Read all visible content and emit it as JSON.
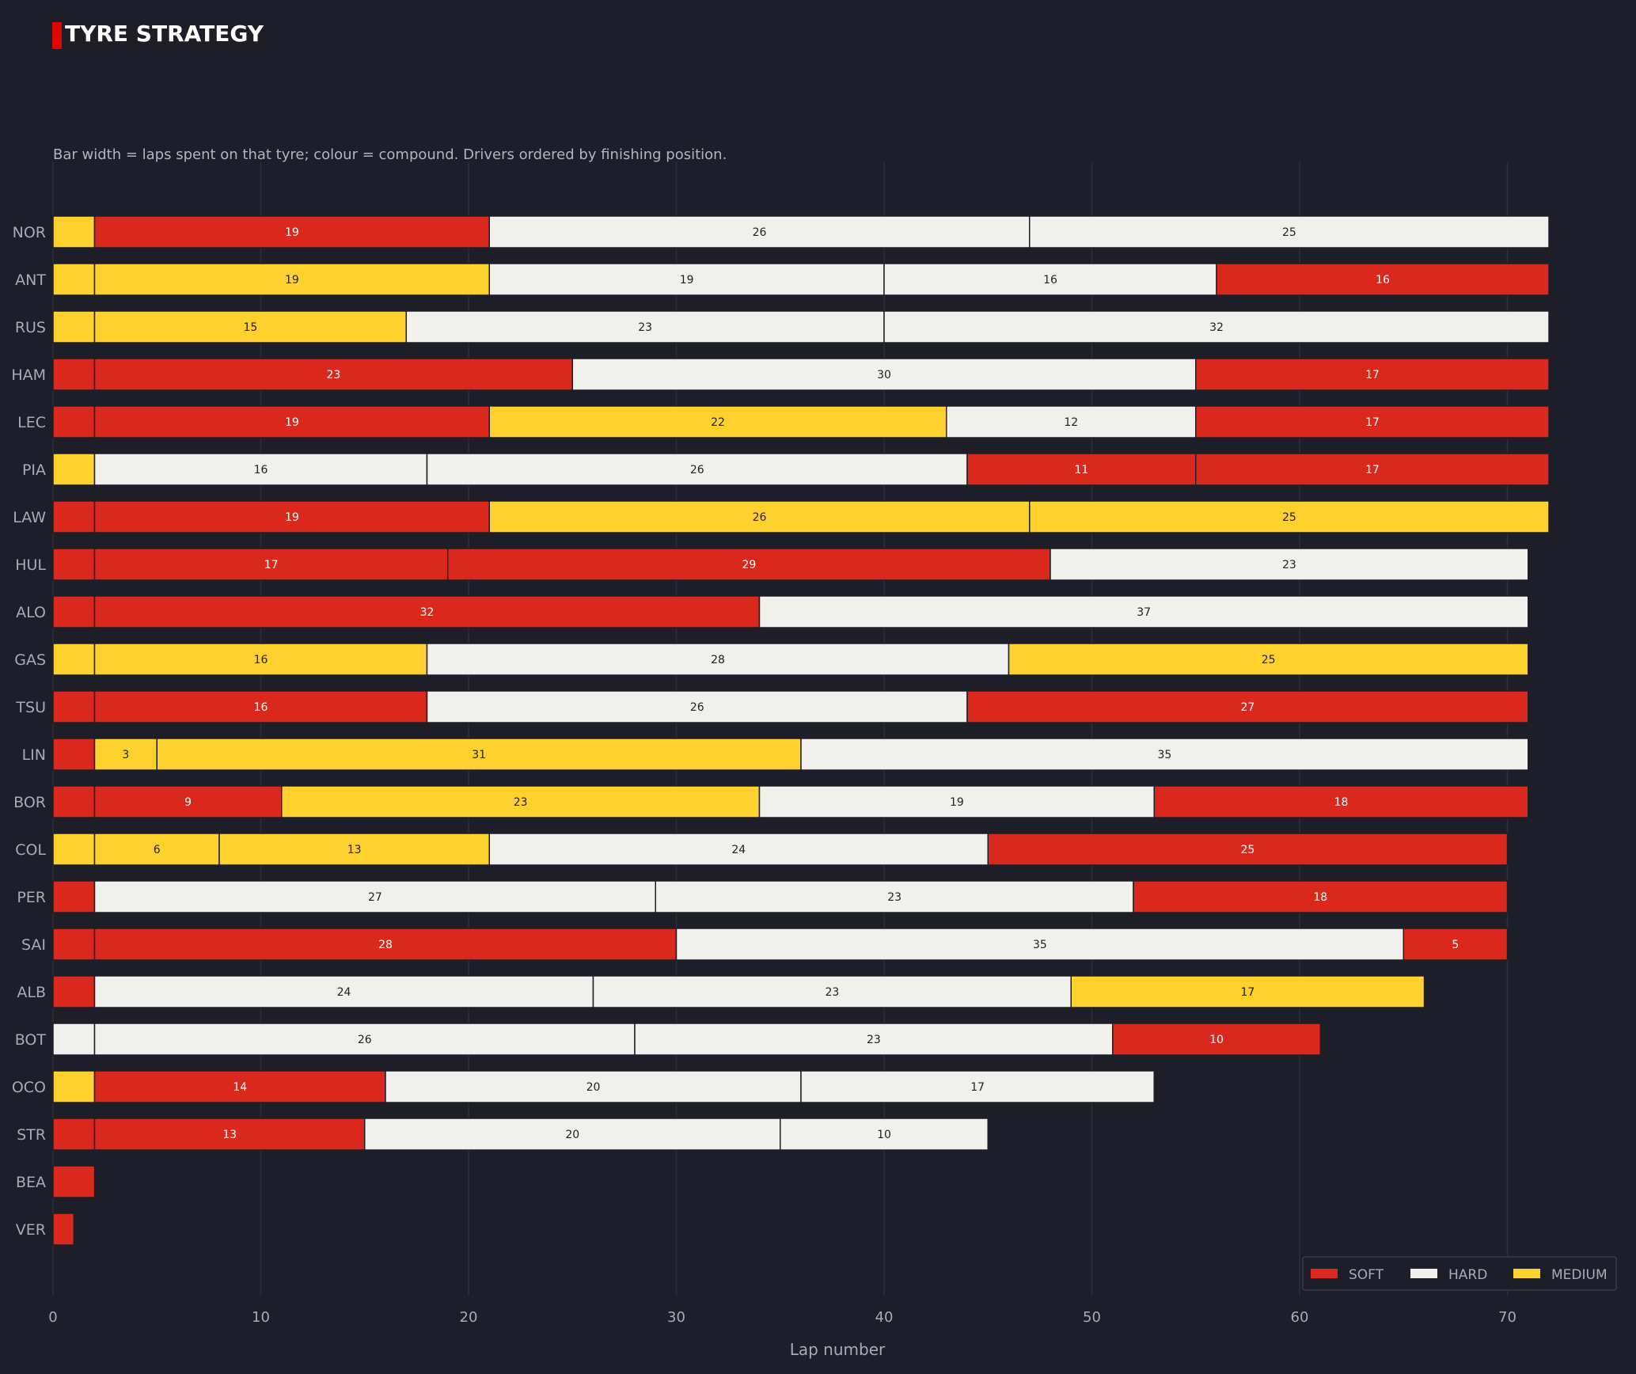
{
  "header": {
    "title": "TYRE STRATEGY",
    "subtitle": "Bar width = laps spent on that tyre; colour = compound. Drivers ordered by finishing position."
  },
  "colors": {
    "background": "#1e1e28",
    "accent": "#e10600",
    "SOFT": "#da291c",
    "HARD": "#f0f0ec",
    "MEDIUM": "#ffd12e",
    "grid": "#2e2e3a",
    "axis_text": "#aaaab4"
  },
  "chart_data": {
    "type": "bar",
    "orientation": "horizontal",
    "stacked": true,
    "title": "TYRE STRATEGY",
    "xlabel": "Lap number",
    "ylabel": "",
    "xlim": [
      0,
      76
    ],
    "xticks": [
      0,
      10,
      20,
      30,
      40,
      50,
      60,
      70
    ],
    "grid": true,
    "legend_position": "bottom-right",
    "legend": [
      "SOFT",
      "HARD",
      "MEDIUM"
    ],
    "drivers": [
      {
        "driver": "NOR",
        "stints": [
          {
            "compound": "MEDIUM",
            "laps": 2
          },
          {
            "compound": "SOFT",
            "laps": 19
          },
          {
            "compound": "HARD",
            "laps": 26
          },
          {
            "compound": "HARD",
            "laps": 25
          }
        ]
      },
      {
        "driver": "ANT",
        "stints": [
          {
            "compound": "MEDIUM",
            "laps": 2
          },
          {
            "compound": "MEDIUM",
            "laps": 19
          },
          {
            "compound": "HARD",
            "laps": 19
          },
          {
            "compound": "HARD",
            "laps": 16
          },
          {
            "compound": "SOFT",
            "laps": 16
          }
        ]
      },
      {
        "driver": "RUS",
        "stints": [
          {
            "compound": "MEDIUM",
            "laps": 2
          },
          {
            "compound": "MEDIUM",
            "laps": 15
          },
          {
            "compound": "HARD",
            "laps": 23
          },
          {
            "compound": "HARD",
            "laps": 32
          }
        ]
      },
      {
        "driver": "HAM",
        "stints": [
          {
            "compound": "SOFT",
            "laps": 2
          },
          {
            "compound": "SOFT",
            "laps": 23
          },
          {
            "compound": "HARD",
            "laps": 30
          },
          {
            "compound": "SOFT",
            "laps": 17
          }
        ]
      },
      {
        "driver": "LEC",
        "stints": [
          {
            "compound": "SOFT",
            "laps": 2
          },
          {
            "compound": "SOFT",
            "laps": 19
          },
          {
            "compound": "MEDIUM",
            "laps": 22
          },
          {
            "compound": "HARD",
            "laps": 12
          },
          {
            "compound": "SOFT",
            "laps": 17
          }
        ]
      },
      {
        "driver": "PIA",
        "stints": [
          {
            "compound": "MEDIUM",
            "laps": 2
          },
          {
            "compound": "HARD",
            "laps": 16
          },
          {
            "compound": "HARD",
            "laps": 26
          },
          {
            "compound": "SOFT",
            "laps": 11
          },
          {
            "compound": "SOFT",
            "laps": 17
          }
        ]
      },
      {
        "driver": "LAW",
        "stints": [
          {
            "compound": "SOFT",
            "laps": 2
          },
          {
            "compound": "SOFT",
            "laps": 19
          },
          {
            "compound": "MEDIUM",
            "laps": 26
          },
          {
            "compound": "MEDIUM",
            "laps": 25
          }
        ]
      },
      {
        "driver": "HUL",
        "stints": [
          {
            "compound": "SOFT",
            "laps": 2
          },
          {
            "compound": "SOFT",
            "laps": 17
          },
          {
            "compound": "SOFT",
            "laps": 29
          },
          {
            "compound": "HARD",
            "laps": 23
          }
        ]
      },
      {
        "driver": "ALO",
        "stints": [
          {
            "compound": "SOFT",
            "laps": 2
          },
          {
            "compound": "SOFT",
            "laps": 32
          },
          {
            "compound": "HARD",
            "laps": 37
          }
        ]
      },
      {
        "driver": "GAS",
        "stints": [
          {
            "compound": "MEDIUM",
            "laps": 2
          },
          {
            "compound": "MEDIUM",
            "laps": 16
          },
          {
            "compound": "HARD",
            "laps": 28
          },
          {
            "compound": "MEDIUM",
            "laps": 25
          }
        ]
      },
      {
        "driver": "TSU",
        "stints": [
          {
            "compound": "SOFT",
            "laps": 2
          },
          {
            "compound": "SOFT",
            "laps": 16
          },
          {
            "compound": "HARD",
            "laps": 26
          },
          {
            "compound": "SOFT",
            "laps": 27
          }
        ]
      },
      {
        "driver": "LIN",
        "stints": [
          {
            "compound": "SOFT",
            "laps": 2
          },
          {
            "compound": "MEDIUM",
            "laps": 3
          },
          {
            "compound": "MEDIUM",
            "laps": 31
          },
          {
            "compound": "HARD",
            "laps": 35
          }
        ]
      },
      {
        "driver": "BOR",
        "stints": [
          {
            "compound": "SOFT",
            "laps": 2
          },
          {
            "compound": "SOFT",
            "laps": 9
          },
          {
            "compound": "MEDIUM",
            "laps": 23
          },
          {
            "compound": "HARD",
            "laps": 19
          },
          {
            "compound": "SOFT",
            "laps": 18
          }
        ]
      },
      {
        "driver": "COL",
        "stints": [
          {
            "compound": "MEDIUM",
            "laps": 2
          },
          {
            "compound": "MEDIUM",
            "laps": 6
          },
          {
            "compound": "MEDIUM",
            "laps": 13
          },
          {
            "compound": "HARD",
            "laps": 24
          },
          {
            "compound": "SOFT",
            "laps": 25
          }
        ]
      },
      {
        "driver": "PER",
        "stints": [
          {
            "compound": "SOFT",
            "laps": 2
          },
          {
            "compound": "HARD",
            "laps": 27
          },
          {
            "compound": "HARD",
            "laps": 23
          },
          {
            "compound": "SOFT",
            "laps": 18
          }
        ]
      },
      {
        "driver": "SAI",
        "stints": [
          {
            "compound": "SOFT",
            "laps": 2
          },
          {
            "compound": "SOFT",
            "laps": 28
          },
          {
            "compound": "HARD",
            "laps": 35
          },
          {
            "compound": "SOFT",
            "laps": 5
          }
        ]
      },
      {
        "driver": "ALB",
        "stints": [
          {
            "compound": "SOFT",
            "laps": 2
          },
          {
            "compound": "HARD",
            "laps": 24
          },
          {
            "compound": "HARD",
            "laps": 23
          },
          {
            "compound": "MEDIUM",
            "laps": 17
          }
        ]
      },
      {
        "driver": "BOT",
        "stints": [
          {
            "compound": "HARD",
            "laps": 2
          },
          {
            "compound": "HARD",
            "laps": 26
          },
          {
            "compound": "HARD",
            "laps": 23
          },
          {
            "compound": "SOFT",
            "laps": 10
          }
        ]
      },
      {
        "driver": "OCO",
        "stints": [
          {
            "compound": "MEDIUM",
            "laps": 2
          },
          {
            "compound": "SOFT",
            "laps": 14
          },
          {
            "compound": "HARD",
            "laps": 20
          },
          {
            "compound": "HARD",
            "laps": 17
          }
        ]
      },
      {
        "driver": "STR",
        "stints": [
          {
            "compound": "SOFT",
            "laps": 2
          },
          {
            "compound": "SOFT",
            "laps": 13
          },
          {
            "compound": "HARD",
            "laps": 20
          },
          {
            "compound": "HARD",
            "laps": 10
          }
        ]
      },
      {
        "driver": "BEA",
        "stints": [
          {
            "compound": "SOFT",
            "laps": 2
          }
        ]
      },
      {
        "driver": "VER",
        "stints": [
          {
            "compound": "SOFT",
            "laps": 1
          }
        ]
      }
    ]
  }
}
